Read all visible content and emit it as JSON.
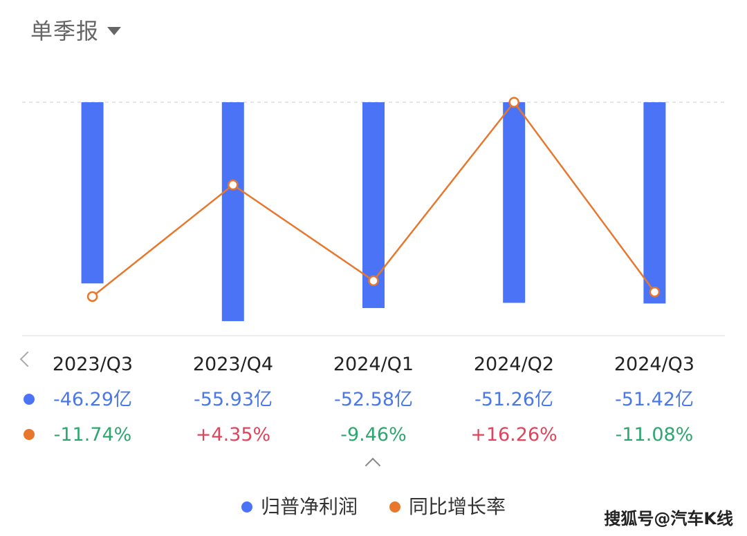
{
  "header": {
    "title": "单季报",
    "dropdown_icon": "caret-down-icon"
  },
  "colors": {
    "bar": "#4a74f5",
    "line": "#e8772e",
    "positive": "#e0445a",
    "negative": "#2ea66f",
    "gridline": "#dddddd"
  },
  "chart_data": {
    "type": "bar",
    "categories": [
      "2023/Q3",
      "2023/Q4",
      "2024/Q1",
      "2024/Q2",
      "2024/Q3"
    ],
    "series": [
      {
        "name": "归普净利润",
        "type": "bar",
        "values": [
          -46.29,
          -55.93,
          -52.58,
          -51.26,
          -51.42
        ],
        "unit": "亿"
      },
      {
        "name": "同比增长率",
        "type": "line",
        "values": [
          -11.74,
          4.35,
          -9.46,
          16.26,
          -11.08
        ],
        "unit": "%"
      }
    ],
    "bar_axis_range": [
      -60,
      0
    ],
    "line_axis_range": [
      -13,
      16.26
    ],
    "grid": "top dashed line only",
    "legend": "bottom-center"
  },
  "table": {
    "periods": [
      "2023/Q3",
      "2023/Q4",
      "2024/Q1",
      "2024/Q2",
      "2024/Q3"
    ],
    "profit_values": [
      "-46.29亿",
      "-55.93亿",
      "-52.58亿",
      "-51.26亿",
      "-51.42亿"
    ],
    "growth_values": [
      "-11.74%",
      "+4.35%",
      "-9.46%",
      "+16.26%",
      "-11.08%"
    ]
  },
  "legend": {
    "items": [
      {
        "label": "归普净利润"
      },
      {
        "label": "同比增长率"
      }
    ]
  },
  "watermark": "搜狐号@汽车K线"
}
